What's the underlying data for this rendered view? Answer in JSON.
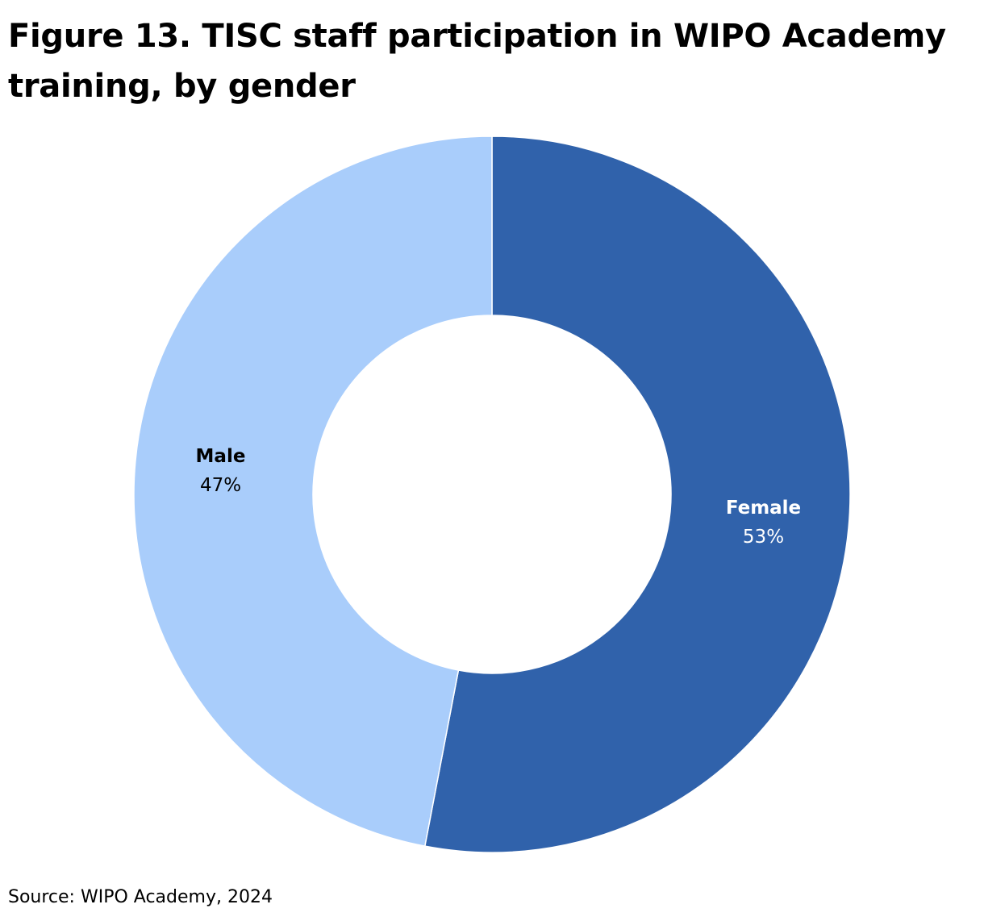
{
  "title": "Figure 13. TISC staff participation in WIPO Academy training, by gender",
  "source": "Source: WIPO Academy, 2024",
  "chart_data": {
    "type": "pie",
    "variant": "donut",
    "title": "Figure 13. TISC staff participation in WIPO Academy training, by gender",
    "slices": [
      {
        "name": "Female",
        "value": 53,
        "label": "53%",
        "color": "#3062ab",
        "label_color": "#ffffff"
      },
      {
        "name": "Male",
        "value": 47,
        "label": "47%",
        "color": "#a9cdfb",
        "label_color": "#000000"
      }
    ],
    "start": "top",
    "direction": "clockwise",
    "legend": "none"
  }
}
